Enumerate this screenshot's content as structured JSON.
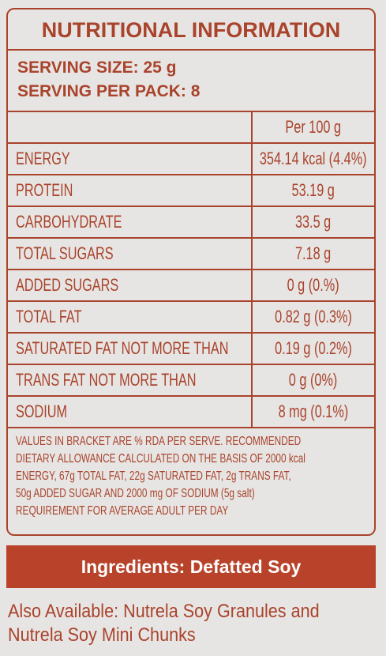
{
  "header": {
    "title": "NUTRITIONAL INFORMATION",
    "serving": [
      "SERVING SIZE:  25 g",
      "SERVING PER PACK: 8"
    ]
  },
  "table": {
    "column_header": "Per 100 g",
    "rows": [
      [
        "ENERGY",
        "354.14 kcal (4.4%)"
      ],
      [
        "PROTEIN",
        "53.19 g"
      ],
      [
        "CARBOHYDRATE",
        "33.5 g"
      ],
      [
        "TOTAL SUGARS",
        "7.18 g"
      ],
      [
        "ADDED SUGARS",
        "0 g (0.%)"
      ],
      [
        "TOTAL FAT",
        "0.82 g (0.3%)"
      ],
      [
        "SATURATED FAT NOT MORE THAN",
        "0.19 g (0.2%)"
      ],
      [
        "TRANS FAT NOT MORE THAN",
        "0 g (0%)"
      ],
      [
        "SODIUM",
        "8 mg (0.1%)"
      ]
    ]
  },
  "footnote": [
    "VALUES IN BRACKET ARE % RDA PER SERVE. RECOMMENDED",
    "DIETARY ALLOWANCE CALCULATED ON THE BASIS OF 2000 kcal",
    "ENERGY, 67g TOTAL FAT, 22g SATURATED FAT, 2g TRANS FAT,",
    "50g ADDED SUGAR AND 2000 mg OF SODIUM (5g salt)",
    "REQUIREMENT FOR AVERAGE ADULT PER DAY"
  ],
  "ingredients": "Ingredients: Defatted Soy",
  "also_available": [
    "Also Available: Nutrela Soy Granules and",
    "Nutrela Soy Mini Chunks"
  ]
}
